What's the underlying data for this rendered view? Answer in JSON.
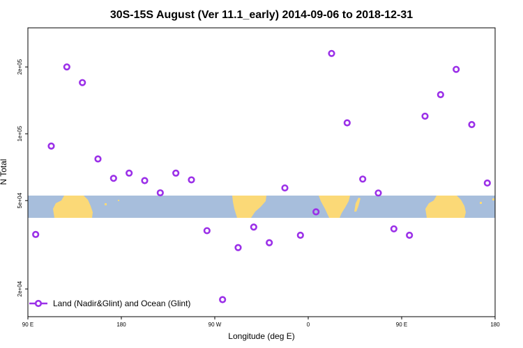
{
  "chart_data": {
    "type": "scatter",
    "title": "30S-15S August (Ver 11.1_early)   2014-09-06 to 2018-12-31",
    "xlabel": "Longitude (deg E)",
    "ylabel": "N Total",
    "xlim": [
      90,
      540
    ],
    "ylim_log": [
      15000,
      300000
    ],
    "x_ticks": [
      {
        "value": 90,
        "label": "90 E"
      },
      {
        "value": 180,
        "label": "180"
      },
      {
        "value": 270,
        "label": "90 W"
      },
      {
        "value": 360,
        "label": "0"
      },
      {
        "value": 450,
        "label": "90 E"
      },
      {
        "value": 540,
        "label": "180"
      }
    ],
    "y_ticks": [
      {
        "value": 20000,
        "label": "2e+04"
      },
      {
        "value": 50000,
        "label": "5e+04"
      },
      {
        "value": 100000,
        "label": "1e+05"
      },
      {
        "value": 200000,
        "label": "2e+05"
      }
    ],
    "series": [
      {
        "name": "Land (Nadir&Glint) and Ocean (Glint)",
        "color": "#9b30e8",
        "x": [
          97.5,
          112.5,
          127.5,
          142.5,
          157.5,
          172.5,
          187.5,
          202.5,
          217.5,
          232.5,
          247.5,
          262.5,
          277.5,
          292.5,
          307.5,
          322.5,
          337.5,
          352.5,
          367.5,
          382.5,
          397.5,
          412.5,
          427.5,
          442.5,
          457.5,
          472.5,
          487.5,
          502.5,
          517.5,
          532.5
        ],
        "y": [
          35200,
          88000,
          200000,
          170000,
          77000,
          63000,
          66500,
          61500,
          54200,
          66500,
          62000,
          36600,
          17900,
          30700,
          38000,
          32300,
          57000,
          34900,
          44500,
          230000,
          112000,
          62500,
          54100,
          37300,
          34900,
          120000,
          150000,
          195000,
          110000,
          60000
        ]
      }
    ],
    "map_band": {
      "ocean_color": "#a7bedc",
      "land_color": "#fbd977"
    },
    "legend": {
      "position": "bottom-left"
    }
  }
}
